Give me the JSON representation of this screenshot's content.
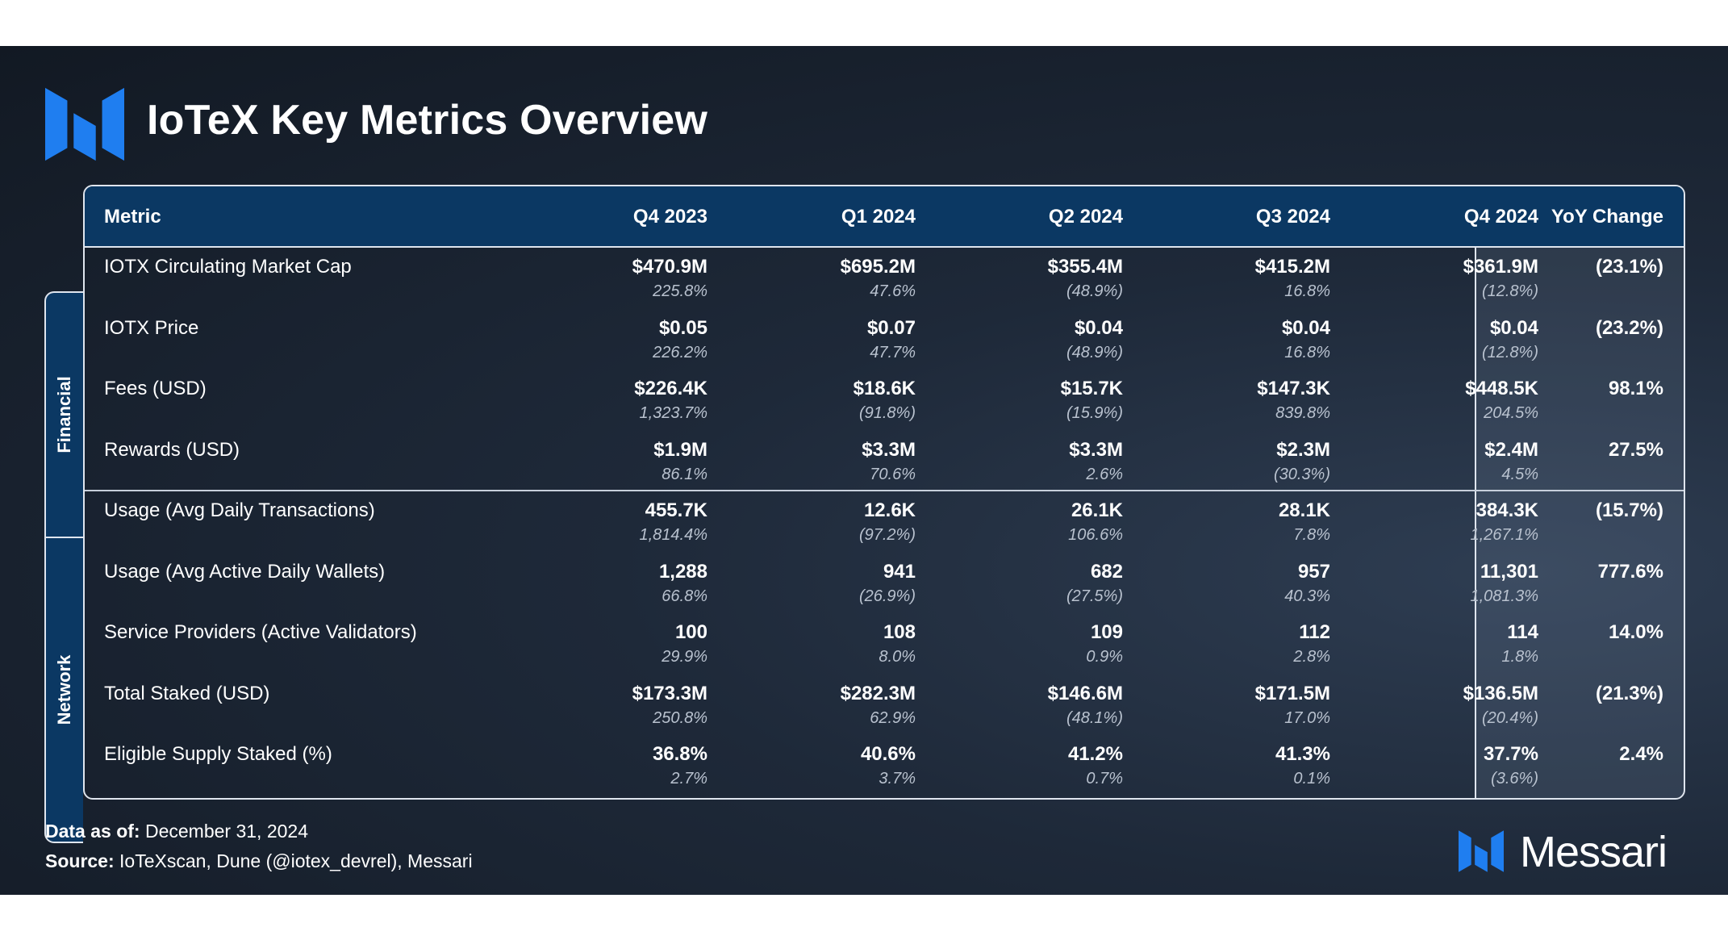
{
  "title": "IoTeX Key Metrics Overview",
  "brand": {
    "name": "Messari",
    "accent": "#1f7ef0"
  },
  "colors": {
    "header_bg": "#0b3863",
    "frame": "#dfe5ee"
  },
  "chart_data": {
    "type": "table",
    "title": "IoTeX Key Metrics Overview",
    "columns": [
      "Metric",
      "Q4 2023",
      "Q1 2024",
      "Q2 2024",
      "Q3 2024",
      "Q4 2024",
      "YoY Change"
    ],
    "groups": [
      {
        "name": "Financial",
        "rows": [
          {
            "metric": "IOTX Circulating Market Cap",
            "values": [
              "$470.9M",
              "$695.2M",
              "$355.4M",
              "$415.2M",
              "$361.9M"
            ],
            "changes": [
              "225.8%",
              "47.6%",
              "(48.9%)",
              "16.8%",
              "(12.8%)"
            ],
            "yoy": "(23.1%)"
          },
          {
            "metric": "IOTX Price",
            "values": [
              "$0.05",
              "$0.07",
              "$0.04",
              "$0.04",
              "$0.04"
            ],
            "changes": [
              "226.2%",
              "47.7%",
              "(48.9%)",
              "16.8%",
              "(12.8%)"
            ],
            "yoy": "(23.2%)"
          },
          {
            "metric": "Fees (USD)",
            "values": [
              "$226.4K",
              "$18.6K",
              "$15.7K",
              "$147.3K",
              "$448.5K"
            ],
            "changes": [
              "1,323.7%",
              "(91.8%)",
              "(15.9%)",
              "839.8%",
              "204.5%"
            ],
            "yoy": "98.1%"
          },
          {
            "metric": "Rewards (USD)",
            "values": [
              "$1.9M",
              "$3.3M",
              "$3.3M",
              "$2.3M",
              "$2.4M"
            ],
            "changes": [
              "86.1%",
              "70.6%",
              "2.6%",
              "(30.3%)",
              "4.5%"
            ],
            "yoy": "27.5%"
          }
        ]
      },
      {
        "name": "Network",
        "rows": [
          {
            "metric": "Usage (Avg Daily Transactions)",
            "values": [
              "455.7K",
              "12.6K",
              "26.1K",
              "28.1K",
              "384.3K"
            ],
            "changes": [
              "1,814.4%",
              "(97.2%)",
              "106.6%",
              "7.8%",
              "1,267.1%"
            ],
            "yoy": "(15.7%)"
          },
          {
            "metric": "Usage (Avg Active Daily Wallets)",
            "values": [
              "1,288",
              "941",
              "682",
              "957",
              "11,301"
            ],
            "changes": [
              "66.8%",
              "(26.9%)",
              "(27.5%)",
              "40.3%",
              "1,081.3%"
            ],
            "yoy": "777.6%"
          },
          {
            "metric": "Service Providers (Active Validators)",
            "values": [
              "100",
              "108",
              "109",
              "112",
              "114"
            ],
            "changes": [
              "29.9%",
              "8.0%",
              "0.9%",
              "2.8%",
              "1.8%"
            ],
            "yoy": "14.0%"
          },
          {
            "metric": "Total Staked (USD)",
            "values": [
              "$173.3M",
              "$282.3M",
              "$146.6M",
              "$171.5M",
              "$136.5M"
            ],
            "changes": [
              "250.8%",
              "62.9%",
              "(48.1%)",
              "17.0%",
              "(20.4%)"
            ],
            "yoy": "(21.3%)"
          },
          {
            "metric": "Eligible Supply Staked (%)",
            "values": [
              "36.8%",
              "40.6%",
              "41.2%",
              "41.3%",
              "37.7%"
            ],
            "changes": [
              "2.7%",
              "3.7%",
              "0.7%",
              "0.1%",
              "(3.6%)"
            ],
            "yoy": "2.4%"
          }
        ]
      }
    ]
  },
  "footer": {
    "date_label": "Data as of:",
    "date_value": "December 31, 2024",
    "source_label": "Source:",
    "source_value": "IoTeXscan, Dune (@iotex_devrel), Messari"
  }
}
